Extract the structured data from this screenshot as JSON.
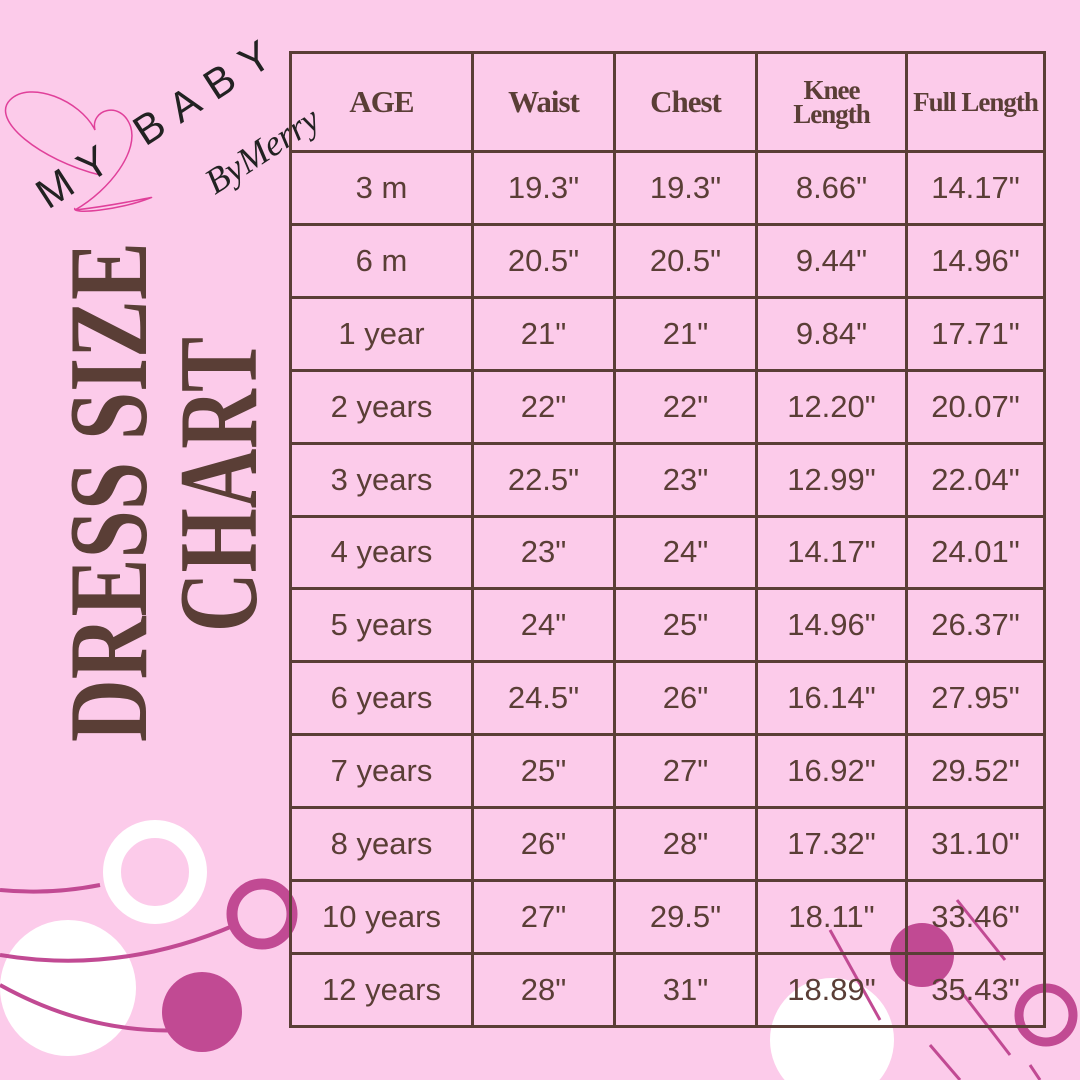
{
  "logo": {
    "line1": "MY BABY",
    "line2": "ByMerry"
  },
  "title": {
    "line1": "DRESS SIZE",
    "line2": "CHART"
  },
  "colors": {
    "background": "#fccbea",
    "text": "#5a3e36",
    "accent": "#c14a93",
    "white": "#ffffff"
  },
  "chart_data": {
    "type": "table",
    "columns": [
      "AGE",
      "Waist",
      "Chest",
      "Knee Length",
      "Full Length"
    ],
    "header": {
      "age": "AGE",
      "waist": "Waist",
      "chest": "Chest",
      "knee_1": "Knee",
      "knee_2": "Length",
      "full": "Full Length"
    },
    "rows": [
      [
        "3 m",
        "19.3\"",
        "19.3\"",
        "8.66\"",
        "14.17\""
      ],
      [
        "6 m",
        "20.5\"",
        "20.5\"",
        "9.44\"",
        "14.96\""
      ],
      [
        "1 year",
        "21\"",
        "21\"",
        "9.84\"",
        "17.71\""
      ],
      [
        "2 years",
        "22\"",
        "22\"",
        "12.20\"",
        "20.07\""
      ],
      [
        "3 years",
        "22.5\"",
        "23\"",
        "12.99\"",
        "22.04\""
      ],
      [
        "4 years",
        "23\"",
        "24\"",
        "14.17\"",
        "24.01\""
      ],
      [
        "5 years",
        "24\"",
        "25\"",
        "14.96\"",
        "26.37\""
      ],
      [
        "6 years",
        "24.5\"",
        "26\"",
        "16.14\"",
        "27.95\""
      ],
      [
        "7 years",
        "25\"",
        "27\"",
        "16.92\"",
        "29.52\""
      ],
      [
        "8 years",
        "26\"",
        "28\"",
        "17.32\"",
        "31.10\""
      ],
      [
        "10 years",
        "27\"",
        "29.5\"",
        "18.11\"",
        "33.46\""
      ],
      [
        "12 years",
        "28\"",
        "31\"",
        "18.89\"",
        "35.43\""
      ]
    ]
  }
}
